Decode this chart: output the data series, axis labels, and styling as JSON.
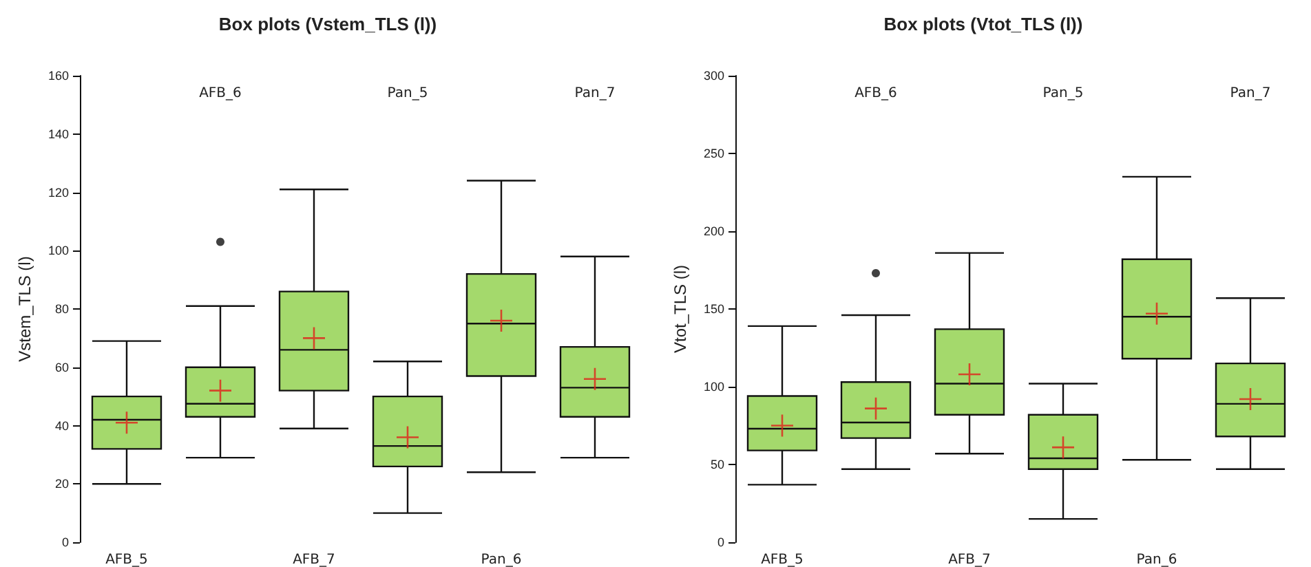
{
  "chart_data": [
    {
      "type": "box",
      "title": "Box plots (Vstem_TLS (l))",
      "ylabel": "Vstem_TLS (l)",
      "categories": [
        "AFB_5",
        "AFB_6",
        "AFB_7",
        "Pan_5",
        "Pan_6",
        "Pan_7"
      ],
      "color": "#a4d96c",
      "ylim": [
        0,
        160
      ],
      "yticks": [
        0,
        20,
        40,
        60,
        80,
        100,
        120,
        140,
        160
      ],
      "boxes": [
        {
          "low": 20,
          "q1": 32,
          "median": 42,
          "q3": 50,
          "high": 69,
          "mean": 41
        },
        {
          "low": 29,
          "q1": 43,
          "median": 47.5,
          "q3": 60,
          "high": 81,
          "mean": 52,
          "outliers": [
            103
          ]
        },
        {
          "low": 39,
          "q1": 52,
          "median": 66,
          "q3": 86,
          "high": 121,
          "mean": 70
        },
        {
          "low": 10,
          "q1": 26,
          "median": 33,
          "q3": 50,
          "high": 62,
          "mean": 36
        },
        {
          "low": 24,
          "q1": 57,
          "median": 75,
          "q3": 92,
          "high": 124,
          "mean": 76
        },
        {
          "low": 29,
          "q1": 43,
          "median": 53,
          "q3": 67,
          "high": 98,
          "mean": 56
        }
      ]
    },
    {
      "type": "box",
      "title": "Box plots (Vtot_TLS (l))",
      "ylabel": "Vtot_TLS (l)",
      "categories": [
        "AFB_5",
        "AFB_6",
        "AFB_7",
        "Pan_5",
        "Pan_6",
        "Pan_7"
      ],
      "color": "#a4d96c",
      "ylim": [
        0,
        300
      ],
      "yticks": [
        0,
        50,
        100,
        150,
        200,
        250,
        300
      ],
      "boxes": [
        {
          "low": 37,
          "q1": 59,
          "median": 73,
          "q3": 94,
          "high": 139,
          "mean": 75
        },
        {
          "low": 47,
          "q1": 67,
          "median": 77,
          "q3": 103,
          "high": 146,
          "mean": 86,
          "outliers": [
            173
          ]
        },
        {
          "low": 57,
          "q1": 82,
          "median": 102,
          "q3": 137,
          "high": 186,
          "mean": 108
        },
        {
          "low": 15,
          "q1": 47,
          "median": 54,
          "q3": 82,
          "high": 102,
          "mean": 61
        },
        {
          "low": 53,
          "q1": 118,
          "median": 145,
          "q3": 182,
          "high": 235,
          "mean": 147
        },
        {
          "low": 47,
          "q1": 68,
          "median": 89,
          "q3": 115,
          "high": 157,
          "mean": 92
        }
      ]
    }
  ]
}
